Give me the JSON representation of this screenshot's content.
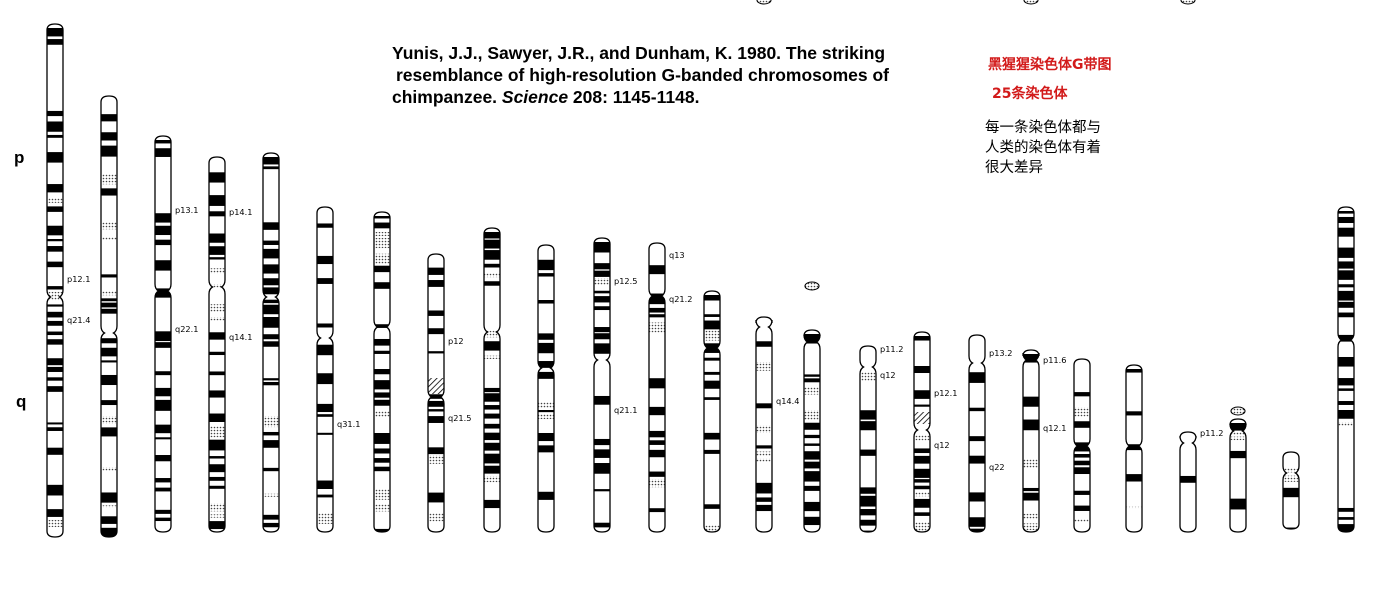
{
  "citation": {
    "line1": "Yunis, J.J., Sawyer, J.R., and Dunham, K. 1980. The striking",
    "line2": "resemblance of high-resolution G-banded chromosomes of",
    "line3_prefix": "chimpanzee.  ",
    "journal": "Science",
    "line3_suffix": " 208: 1145-1148."
  },
  "heading": "黑猩猩染色体G带图",
  "count_label": "25条染色体",
  "note_lines": [
    "每一条染色体都与",
    "人类的染色体有着",
    "很大差异"
  ],
  "arm_labels": {
    "p": "p",
    "q": "q"
  },
  "band_labels": [
    {
      "chromosome": 1,
      "text": "p12.1"
    },
    {
      "chromosome": 1,
      "text": "q21.4"
    },
    {
      "chromosome": 3,
      "text": "p13.1"
    },
    {
      "chromosome": 3,
      "text": "q22.1"
    },
    {
      "chromosome": 4,
      "text": "p14.1"
    },
    {
      "chromosome": 4,
      "text": "q14.1"
    },
    {
      "chromosome": 6,
      "text": "q31.1"
    },
    {
      "chromosome": 8,
      "text": "p12"
    },
    {
      "chromosome": 8,
      "text": "q21.5"
    },
    {
      "chromosome": 11,
      "text": "p12.5"
    },
    {
      "chromosome": 11,
      "text": "q21.1"
    },
    {
      "chromosome": 12,
      "text": "q13"
    },
    {
      "chromosome": 12,
      "text": "q21.2"
    },
    {
      "chromosome": 14,
      "text": "q14.4"
    },
    {
      "chromosome": 16,
      "text": "p11.2"
    },
    {
      "chromosome": 16,
      "text": "q12"
    },
    {
      "chromosome": 17,
      "text": "p12.1"
    },
    {
      "chromosome": 17,
      "text": "q12"
    },
    {
      "chromosome": 18,
      "text": "p13.2"
    },
    {
      "chromosome": 18,
      "text": "q22"
    },
    {
      "chromosome": 19,
      "text": "p11.6"
    },
    {
      "chromosome": 19,
      "text": "q12.1"
    },
    {
      "chromosome": 22,
      "text": "p11.2"
    }
  ]
}
